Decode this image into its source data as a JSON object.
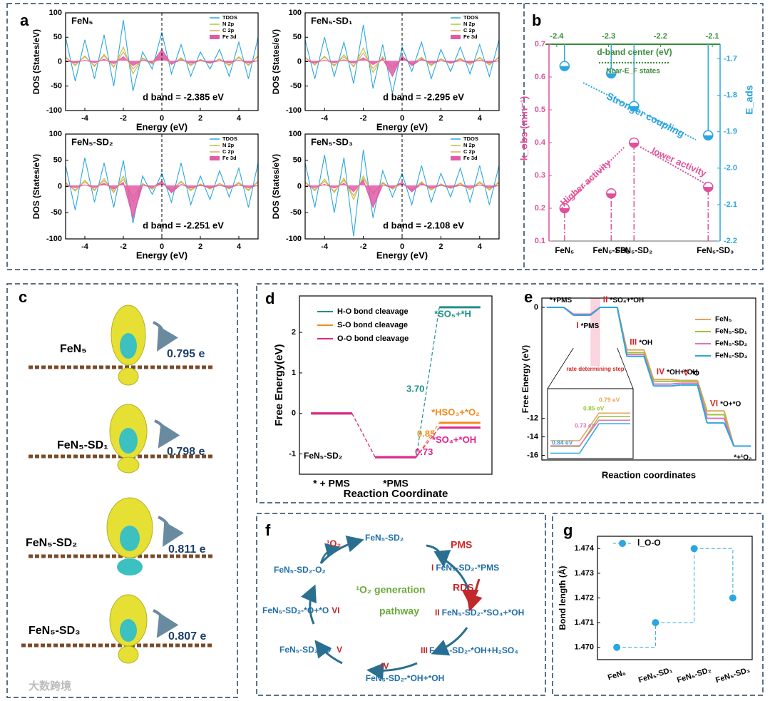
{
  "panel_labels": [
    "a",
    "b",
    "c",
    "d",
    "e",
    "f",
    "g"
  ],
  "watermark": "大数跨境",
  "chart_data": [
    {
      "type": "line",
      "title": "FeN₅",
      "xlabel": "Energy (eV)",
      "ylabel": "DOS (States/eV)",
      "annotation": "d band = -2.385 eV",
      "xlim": [
        -5,
        5
      ],
      "ylim": [
        -100,
        100
      ],
      "xticks": [
        -4,
        -2,
        0,
        2,
        4
      ],
      "yticks": [
        -100,
        -50,
        0,
        50,
        100
      ],
      "vline": 0,
      "x": [
        -5,
        -4.5,
        -4,
        -3.5,
        -3,
        -2.5,
        -2,
        -1.5,
        -1,
        -0.5,
        0,
        0.5,
        1,
        1.5,
        2,
        2.5,
        3,
        3.5,
        4,
        4.5,
        5
      ],
      "series": [
        {
          "name": "TDOS",
          "color": "#2aa6e0",
          "values": [
            50,
            -40,
            45,
            -35,
            55,
            -50,
            85,
            -60,
            20,
            -15,
            60,
            -25,
            35,
            -30,
            20,
            -15,
            25,
            -30,
            40,
            -35,
            50
          ]
        },
        {
          "name": "N 2p",
          "color": "#b8c236",
          "values": [
            10,
            -8,
            12,
            -10,
            15,
            -12,
            30,
            -25,
            8,
            -5,
            15,
            -6,
            8,
            -8,
            5,
            -4,
            6,
            -8,
            10,
            -8,
            12
          ]
        },
        {
          "name": "C 2p",
          "color": "#e8a25a",
          "values": [
            8,
            -6,
            10,
            -8,
            12,
            -10,
            20,
            -15,
            6,
            -4,
            10,
            -5,
            6,
            -6,
            4,
            -3,
            5,
            -6,
            8,
            -6,
            10
          ]
        },
        {
          "name": "Fe 3d",
          "color": "#e05aa8",
          "area": true,
          "values": [
            2,
            -2,
            3,
            -2,
            5,
            -4,
            10,
            -8,
            3,
            -2,
            25,
            -5,
            4,
            -3,
            2,
            -2,
            2,
            -2,
            3,
            -2,
            2
          ]
        }
      ]
    },
    {
      "type": "line",
      "title": "FeN₅-SD₁",
      "xlabel": "Energy (eV)",
      "ylabel": "DOS (States/eV)",
      "annotation": "d band = -2.295 eV",
      "xlim": [
        -5,
        5
      ],
      "ylim": [
        -100,
        100
      ],
      "xticks": [
        -4,
        -2,
        0,
        2,
        4
      ],
      "yticks": [
        -100,
        -50,
        0,
        50,
        100
      ],
      "vline": 0,
      "x": [
        -5,
        -4.5,
        -4,
        -3.5,
        -3,
        -2.5,
        -2,
        -1.5,
        -1,
        -0.5,
        0,
        0.5,
        1,
        1.5,
        2,
        2.5,
        3,
        3.5,
        4,
        4.5,
        5
      ],
      "series": [
        {
          "name": "TDOS",
          "color": "#2aa6e0",
          "values": [
            45,
            -35,
            50,
            -30,
            40,
            -45,
            75,
            -55,
            35,
            -65,
            30,
            -20,
            40,
            -35,
            25,
            -20,
            30,
            -25,
            35,
            -30,
            45
          ]
        },
        {
          "name": "N 2p",
          "color": "#b8c236",
          "values": [
            9,
            -7,
            11,
            -9,
            14,
            -11,
            28,
            -22,
            10,
            -15,
            8,
            -5,
            9,
            -8,
            6,
            -4,
            7,
            -6,
            9,
            -7,
            10
          ]
        },
        {
          "name": "C 2p",
          "color": "#e8a25a",
          "values": [
            7,
            -5,
            9,
            -7,
            10,
            -9,
            18,
            -14,
            8,
            -10,
            6,
            -4,
            7,
            -6,
            5,
            -3,
            5,
            -5,
            7,
            -5,
            8
          ]
        },
        {
          "name": "Fe 3d",
          "color": "#e05aa8",
          "area": true,
          "values": [
            2,
            -2,
            3,
            -2,
            4,
            -3,
            8,
            -6,
            6,
            -30,
            12,
            -8,
            5,
            -3,
            2,
            -2,
            2,
            -2,
            3,
            -2,
            2
          ]
        }
      ]
    },
    {
      "type": "line",
      "title": "FeN₅-SD₂",
      "xlabel": "Energy (eV)",
      "ylabel": "DOS (States/eV)",
      "annotation": "d band = -2.251 eV",
      "xlim": [
        -5,
        5
      ],
      "ylim": [
        -100,
        100
      ],
      "xticks": [
        -4,
        -2,
        0,
        2,
        4
      ],
      "yticks": [
        -100,
        -50,
        0,
        50,
        100
      ],
      "vline": 0,
      "x": [
        -5,
        -4.5,
        -4,
        -3.5,
        -3,
        -2.5,
        -2,
        -1.5,
        -1,
        -0.5,
        0,
        0.5,
        1,
        1.5,
        2,
        2.5,
        3,
        3.5,
        4,
        4.5,
        5
      ],
      "series": [
        {
          "name": "TDOS",
          "color": "#2aa6e0",
          "values": [
            40,
            -45,
            55,
            -30,
            45,
            -40,
            50,
            -70,
            20,
            -15,
            25,
            -30,
            45,
            -35,
            20,
            -25,
            30,
            -20,
            35,
            -40,
            45
          ]
        },
        {
          "name": "N 2p",
          "color": "#b8c236",
          "values": [
            8,
            -9,
            12,
            -8,
            15,
            -12,
            20,
            -30,
            6,
            -5,
            8,
            -8,
            10,
            -8,
            5,
            -5,
            6,
            -5,
            8,
            -8,
            10
          ]
        },
        {
          "name": "C 2p",
          "color": "#e8a25a",
          "values": [
            6,
            -7,
            9,
            -6,
            11,
            -9,
            14,
            -20,
            5,
            -4,
            6,
            -6,
            8,
            -6,
            4,
            -4,
            5,
            -4,
            6,
            -6,
            8
          ]
        },
        {
          "name": "Fe 3d",
          "color": "#e05aa8",
          "area": true,
          "values": [
            2,
            -2,
            3,
            -2,
            6,
            -5,
            8,
            -60,
            3,
            -2,
            10,
            -12,
            4,
            -3,
            2,
            -2,
            2,
            -2,
            3,
            -2,
            2
          ]
        }
      ]
    },
    {
      "type": "line",
      "title": "FeN₅-SD₃",
      "xlabel": "Energy (eV)",
      "ylabel": "DOS (States/eV)",
      "annotation": "d band = -2.108 eV",
      "xlim": [
        -5,
        5
      ],
      "ylim": [
        -100,
        100
      ],
      "xticks": [
        -4,
        -2,
        0,
        2,
        4
      ],
      "yticks": [
        -100,
        -50,
        0,
        50,
        100
      ],
      "vline": 0,
      "x": [
        -5,
        -4.5,
        -4,
        -3.5,
        -3,
        -2.5,
        -2,
        -1.5,
        -1,
        -0.5,
        0,
        0.5,
        1,
        1.5,
        2,
        2.5,
        3,
        3.5,
        4,
        4.5,
        5
      ],
      "series": [
        {
          "name": "TDOS",
          "color": "#2aa6e0",
          "values": [
            45,
            -40,
            60,
            -50,
            55,
            -95,
            70,
            -60,
            30,
            -20,
            25,
            -35,
            40,
            -30,
            25,
            -20,
            35,
            -30,
            40,
            -35,
            40
          ]
        },
        {
          "name": "N 2p",
          "color": "#b8c236",
          "values": [
            9,
            -8,
            14,
            -12,
            16,
            -25,
            20,
            -15,
            8,
            -5,
            6,
            -8,
            9,
            -7,
            5,
            -4,
            7,
            -6,
            9,
            -7,
            9
          ]
        },
        {
          "name": "C 2p",
          "color": "#e8a25a",
          "values": [
            7,
            -6,
            10,
            -9,
            12,
            -18,
            15,
            -12,
            6,
            -4,
            5,
            -6,
            7,
            -5,
            4,
            -3,
            5,
            -5,
            7,
            -5,
            7
          ]
        },
        {
          "name": "Fe 3d",
          "color": "#e05aa8",
          "area": true,
          "values": [
            2,
            -2,
            4,
            -3,
            6,
            -10,
            12,
            -40,
            3,
            -2,
            8,
            -10,
            5,
            -3,
            2,
            -2,
            2,
            -2,
            3,
            -2,
            2
          ]
        }
      ]
    },
    {
      "type": "scatter",
      "xlabel": "d-band center (eV)",
      "ylabel": "k_obs (min⁻¹)",
      "y2label": "E_ads",
      "categories": [
        "FeN₅",
        "FeN₅-SD₁",
        "FeN₅-SD₂",
        "FeN₅-SD₃"
      ],
      "x": [
        -2.385,
        -2.295,
        -2.251,
        -2.108
      ],
      "xlim": [
        -2.415,
        -2.085
      ],
      "xticks": [
        -2.4,
        -2.3,
        -2.2,
        -2.1
      ],
      "ylim": [
        0.1,
        0.7
      ],
      "yticks": [
        0.1,
        0.2,
        0.3,
        0.4,
        0.5,
        0.6,
        0.7
      ],
      "y2lim": [
        -2.2,
        -1.66
      ],
      "y2ticks": [
        -1.7,
        -1.8,
        -1.9,
        {
          "value": -2.0,
          "label": "-2.0"
        },
        -2.1,
        -2.2
      ],
      "axis_colors": {
        "x": "#3a8a3a",
        "y": "#e0509a",
        "y2": "#2aa6e0"
      },
      "series": [
        {
          "name": "k_obs",
          "color": "#e0509a",
          "values": [
            0.2,
            0.245,
            0.4,
            0.265
          ]
        },
        {
          "name": "E_ads",
          "color": "#2aa6e0",
          "axis": "y2",
          "values": [
            -1.72,
            -1.74,
            -1.83,
            -1.91
          ]
        }
      ],
      "annotations": [
        "Near-E_F states",
        "Stronger coupling",
        "Higher activity",
        "lower activity"
      ]
    },
    {
      "type": "energy",
      "ylabel": "Free Energy(eV)",
      "xlabel": "Reaction Coordinate",
      "annotation": "FeN₅-SD₂",
      "connector": "dashed",
      "categories": [
        "* + PMS",
        "*PMS",
        null
      ],
      "ylim": [
        -1.5,
        2.9
      ],
      "yticks": [
        -1,
        0,
        1,
        2
      ],
      "series": [
        {
          "name": "H-O bond cleavage",
          "color": "#1f8f8a",
          "values": [
            0,
            -1.08,
            2.62
          ],
          "step_label": "3.70",
          "end_label": "*SO₅+*H"
        },
        {
          "name": "S-O bond cleavage",
          "color": "#f08c1e",
          "values": [
            0,
            -1.08,
            -0.23
          ],
          "step_label": "0.85",
          "end_label": "*HSO₃+*O₂"
        },
        {
          "name": "O-O bond cleavage",
          "color": "#e0248c",
          "values": [
            0,
            -1.08,
            -0.35
          ],
          "step_label": "0.73",
          "end_label": "*SO₄+*OH"
        }
      ]
    },
    {
      "type": "energy",
      "ylabel": "Free Energy (eV)",
      "xlabel": "Reaction coordinates",
      "connector": "solid",
      "highlight_label": "rate determining step",
      "categories": [
        null,
        null,
        null,
        null,
        null,
        null,
        null,
        null
      ],
      "ylim": [
        -16.5,
        1
      ],
      "yticks": [
        0,
        -12,
        -14,
        -16
      ],
      "state_labels": [
        {
          "text": "*+PMS"
        },
        {
          "roman": "I",
          "text": "*PMS"
        },
        {
          "roman": "II",
          "text": "*SO₄+*OH"
        },
        {
          "roman": "III",
          "text": "*OH"
        },
        {
          "roman": "IV",
          "text": "*OH+*OH"
        },
        {
          "roman": "V",
          "text": "*O"
        },
        {
          "roman": "VI",
          "text": "*O+*O"
        },
        {
          "text": "*+¹O₂"
        }
      ],
      "series": [
        {
          "name": "FeN₅",
          "color": "#e8a25a",
          "values": [
            0,
            -0.79,
            0,
            -4.6,
            -7.8,
            -7.9,
            -11.2,
            -15
          ],
          "barrier_label": "0.79 eV"
        },
        {
          "name": "FeN₅-SD₁",
          "color": "#9ac43a",
          "values": [
            0,
            -0.85,
            0,
            -4.9,
            -8.0,
            -8.0,
            -11.6,
            -15
          ],
          "barrier_label": "0.85 eV"
        },
        {
          "name": "FeN₅-SD₂",
          "color": "#e070c0",
          "values": [
            0,
            -0.73,
            0,
            -5.1,
            -8.3,
            -8.2,
            -12.0,
            -15
          ],
          "barrier_label": "0.73 eV"
        },
        {
          "name": "FeN₅-SD₃",
          "color": "#2aa6e0",
          "values": [
            0,
            -0.84,
            0,
            -5.3,
            -8.5,
            -8.4,
            -12.5,
            -15
          ],
          "barrier_label": "0.84 eV"
        }
      ]
    },
    {
      "type": "step",
      "ylabel": "Bond length (Å)",
      "categories": [
        "FeN₅",
        "FeN₅-SD₁",
        "FeN₅-SD₂",
        "FeN₅-SD₃"
      ],
      "ylim": [
        1.4695,
        1.4745
      ],
      "yticks": [
        {
          "value": 1.47,
          "label": "1.470"
        },
        {
          "value": 1.471,
          "label": "1.471"
        },
        {
          "value": 1.472,
          "label": "1.472"
        },
        {
          "value": 1.473,
          "label": "1.473"
        },
        {
          "value": 1.474,
          "label": "1.474"
        }
      ],
      "series": [
        {
          "name": "l_O-O",
          "color": "#2aa6e0",
          "values": [
            1.47,
            1.471,
            1.474,
            1.472
          ]
        }
      ]
    }
  ],
  "panel_c": {
    "items": [
      {
        "name": "FeN₅",
        "charge": "0.795 e"
      },
      {
        "name": "FeN₅-SD₁",
        "charge": "0.798 e"
      },
      {
        "name": "FeN₅-SD₂",
        "charge": "0.811 e"
      },
      {
        "name": "FeN₅-SD₃",
        "charge": "0.807 e"
      }
    ]
  },
  "panel_f": {
    "center": [
      "¹O₂ generation",
      "pathway"
    ],
    "product": "¹O₂",
    "reactant": "PMS",
    "rds": "RDS",
    "start": "FeN₅-SD₂",
    "end": "FeN₅-SD₂-O₂",
    "steps": [
      {
        "roman": "I",
        "label": "FeN₅-SD₂-*PMS"
      },
      {
        "roman": "II",
        "label": "FeN₅-SD₂-*SO₄+*OH"
      },
      {
        "roman": "III",
        "label": "FeN₅-SD₂-*OH+H₂SO₄"
      },
      {
        "roman": "IV",
        "label": "FeN₅-SD₂-*OH+*OH"
      },
      {
        "roman": "V",
        "label": "FeN₅-SD₂-*O"
      },
      {
        "roman": "VI",
        "label": "FeN₅-SD₂-*O+*O"
      }
    ]
  }
}
